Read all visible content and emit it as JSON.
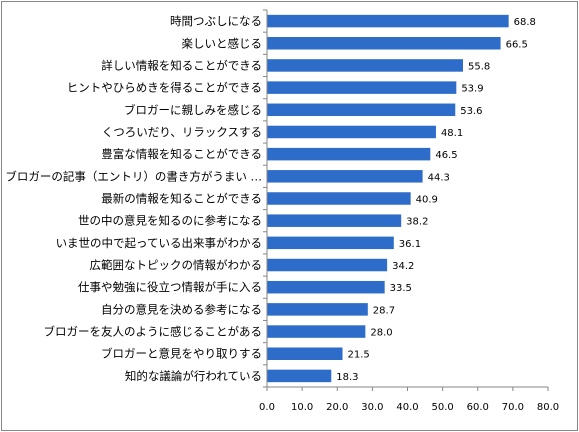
{
  "chart_data": {
    "type": "bar",
    "orientation": "horizontal",
    "categories": [
      "時間つぶしになる",
      "楽しいと感じる",
      "詳しい情報を知ることができる",
      "ヒントやひらめきを得ることができる",
      "ブロガーに親しみを感じる",
      "くつろいだり、リラックスする",
      "豊富な情報を知ることができる",
      "ブロガーの記事（エントリ）の書き方がうまい …",
      "最新の情報を知ることができる",
      "世の中の意見を知るのに参考になる",
      "いま世の中で起っている出来事がわかる",
      "広範囲なトピックの情報がわかる",
      "仕事や勉強に役立つ情報が手に入る",
      "自分の意見を決める参考になる",
      "ブロガーを友人のように感じることがある",
      "ブロガーと意見をやり取りする",
      "知的な議論が行われている"
    ],
    "values": [
      68.8,
      66.5,
      55.8,
      53.9,
      53.6,
      48.1,
      46.5,
      44.3,
      40.9,
      38.2,
      36.1,
      34.2,
      33.5,
      28.7,
      28.0,
      21.5,
      18.3
    ],
    "value_labels": [
      "68.8",
      "66.5",
      "55.8",
      "53.9",
      "53.6",
      "48.1",
      "46.5",
      "44.3",
      "40.9",
      "38.2",
      "36.1",
      "34.2",
      "33.5",
      "28.7",
      "28.0",
      "21.5",
      "18.3"
    ],
    "xlim": [
      0,
      80
    ],
    "x_ticks": [
      "0.0",
      "10.0",
      "20.0",
      "30.0",
      "40.0",
      "50.0",
      "60.0",
      "70.0",
      "80.0"
    ],
    "title": "",
    "xlabel": "",
    "ylabel": "",
    "grid": false,
    "bar_color": "#2e6cc9",
    "axis_color": "#868686",
    "border_color": "#868686"
  }
}
